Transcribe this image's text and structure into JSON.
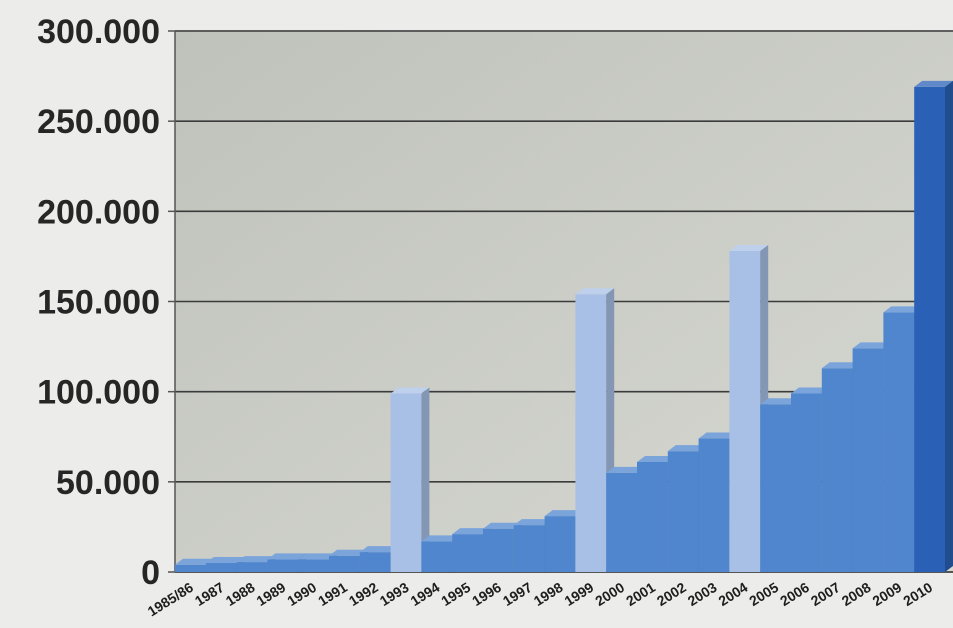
{
  "chart_data": {
    "type": "bar",
    "categories": [
      "1985/86",
      "1987",
      "1988",
      "1989",
      "1990",
      "1991",
      "1992",
      "1993",
      "1994",
      "1995",
      "1996",
      "1997",
      "1998",
      "1999",
      "2000",
      "2001",
      "2002",
      "2003",
      "2004",
      "2005",
      "2006",
      "2007",
      "2008",
      "2009",
      "2010"
    ],
    "values": [
      4000,
      5000,
      5500,
      7000,
      7000,
      9000,
      11000,
      99000,
      17000,
      21000,
      24000,
      26000,
      31000,
      154000,
      55000,
      61000,
      67000,
      74000,
      178000,
      93000,
      99000,
      113000,
      124000,
      144000,
      269000
    ],
    "highlight_categories": [
      "1993",
      "1999",
      "2004"
    ],
    "emphasis_category": "2010",
    "ylim": [
      0,
      300000
    ],
    "yticks": [
      0,
      50000,
      100000,
      150000,
      200000,
      250000,
      300000
    ],
    "ytick_labels": [
      "0",
      "50.000",
      "100.000",
      "150.000",
      "200.000",
      "250.000",
      "300.000"
    ],
    "grid": true,
    "legend": "none",
    "colors": {
      "bar": "#4f86cd",
      "highlight": "#a8c0e6",
      "emphasis": "#2a61b6",
      "plot_background": "#c9cbc4",
      "gridline": "#3b3b3b"
    }
  }
}
